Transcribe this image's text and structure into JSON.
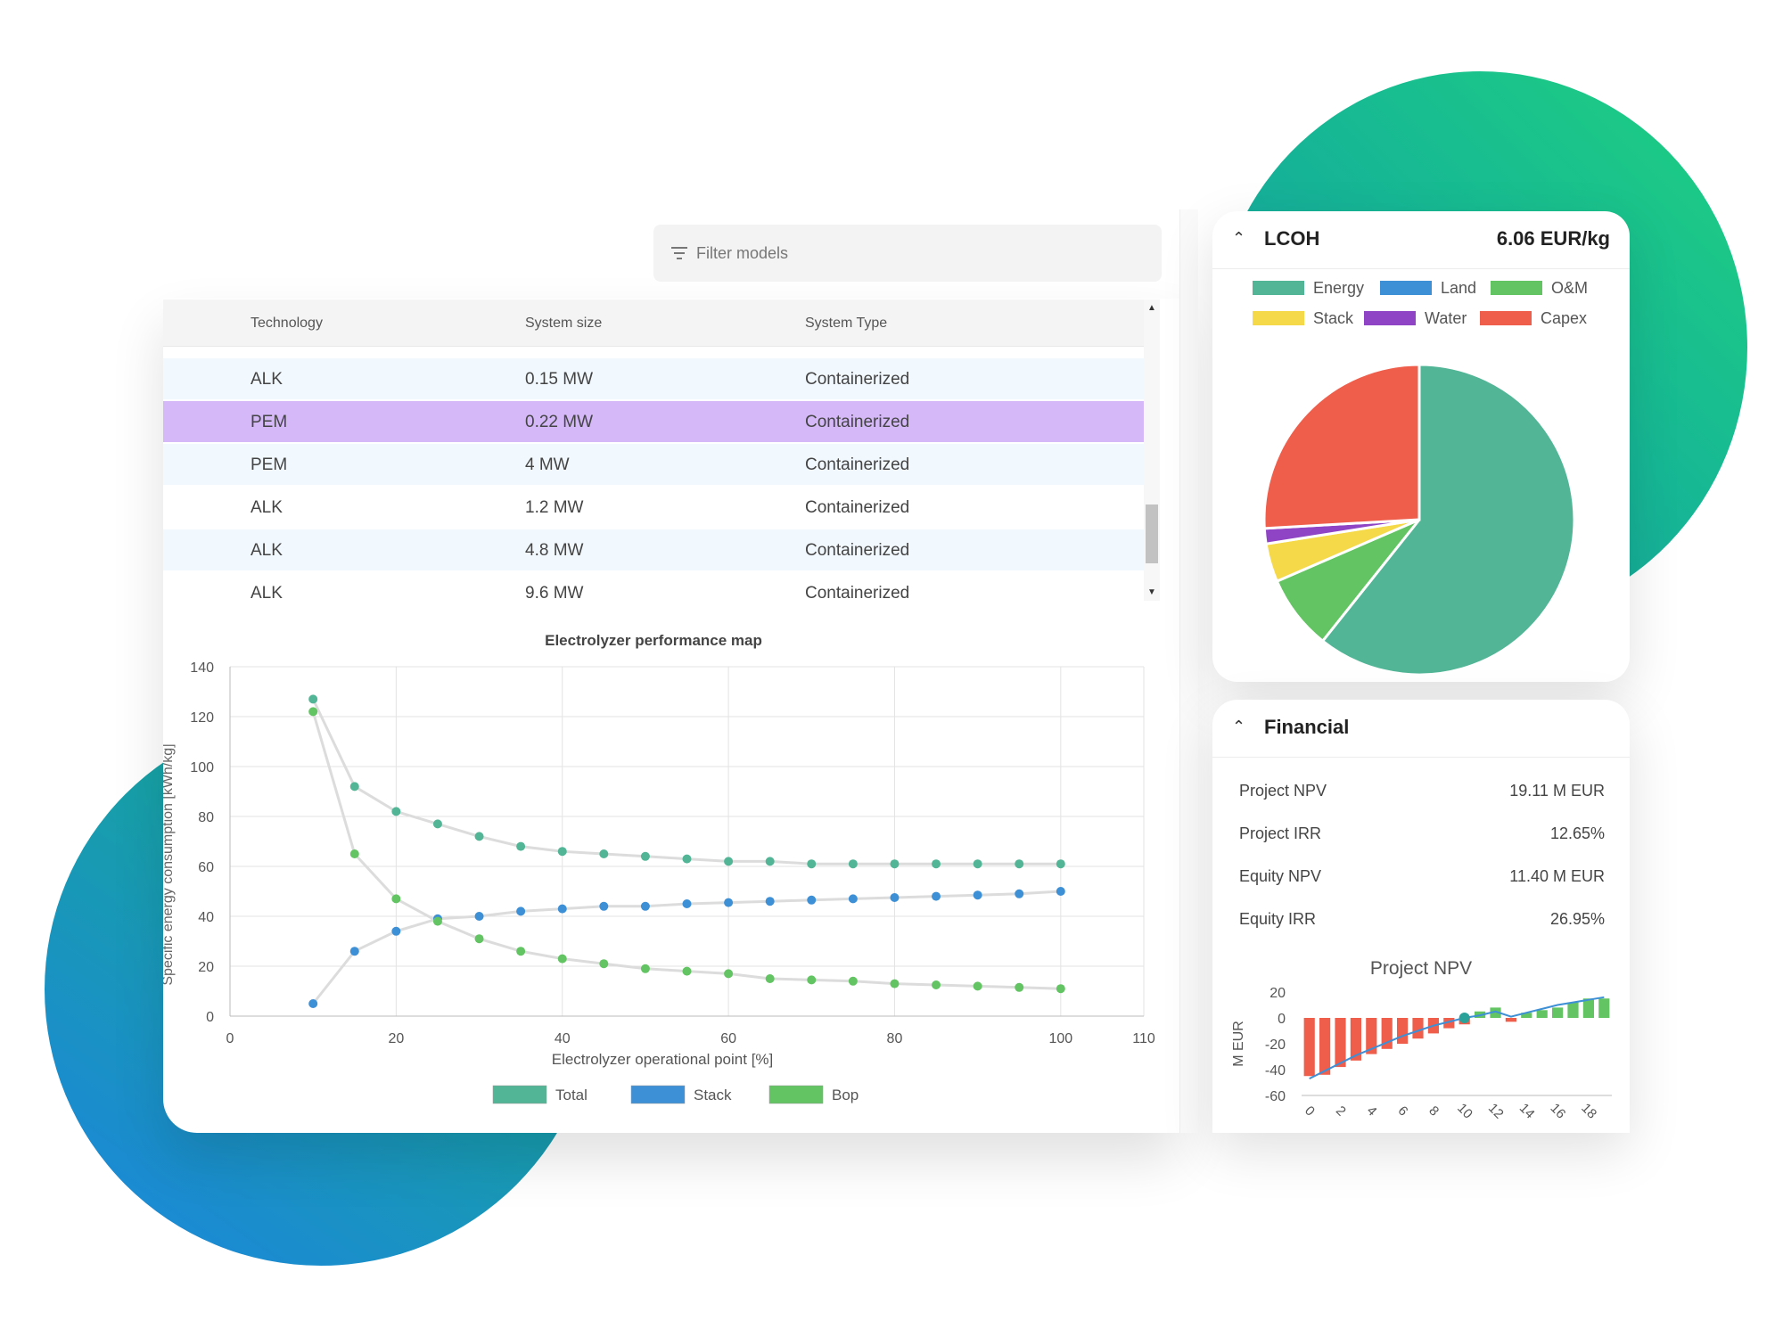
{
  "filter": {
    "placeholder": "Filter models"
  },
  "table": {
    "columns": [
      "Technology",
      "System size",
      "System Type"
    ],
    "rows": [
      {
        "tech": "ALK",
        "size": "0.15 MW",
        "type": "Containerized"
      },
      {
        "tech": "PEM",
        "size": "0.22 MW",
        "type": "Containerized",
        "selected": true
      },
      {
        "tech": "PEM",
        "size": "4 MW",
        "type": "Containerized"
      },
      {
        "tech": "ALK",
        "size": "1.2 MW",
        "type": "Containerized"
      },
      {
        "tech": "ALK",
        "size": "4.8 MW",
        "type": "Containerized"
      },
      {
        "tech": "ALK",
        "size": "9.6 MW",
        "type": "Containerized"
      }
    ]
  },
  "lcoh": {
    "title": "LCOH",
    "value": "6.06 EUR/kg"
  },
  "financial": {
    "title": "Financial",
    "rows": [
      {
        "label": "Project NPV",
        "value": "19.11 M EUR"
      },
      {
        "label": "Project IRR",
        "value": "12.65%"
      },
      {
        "label": "Equity NPV",
        "value": "11.40 M EUR"
      },
      {
        "label": "Equity IRR",
        "value": "26.95%"
      }
    ]
  },
  "colors": {
    "total": "#52b596",
    "stack": "#3d8fd6",
    "bop": "#62c462",
    "selected_row": "#d4b8f8",
    "alt_row": "#f1f8fe",
    "negative": "#ef5d4b",
    "positive": "#62c462"
  },
  "chart_data": [
    {
      "type": "scatter",
      "title": "Electrolyzer performance map",
      "xlabel": "Electrolyzer operational point [%]",
      "ylabel": "Specific energy consumption [kWh/kg]",
      "xlim": [
        0,
        110
      ],
      "ylim": [
        0,
        140
      ],
      "xticks": [
        0,
        20,
        40,
        60,
        80,
        100,
        110
      ],
      "yticks": [
        0,
        20,
        40,
        60,
        80,
        100,
        120,
        140
      ],
      "legend_position": "bottom",
      "series": [
        {
          "name": "Total",
          "color": "#52b596",
          "x": [
            10,
            15,
            20,
            25,
            30,
            35,
            40,
            45,
            50,
            55,
            60,
            65,
            70,
            75,
            80,
            85,
            90,
            95,
            100
          ],
          "y": [
            127,
            92,
            82,
            77,
            72,
            68,
            66,
            65,
            64,
            63,
            62,
            62,
            61,
            61,
            61,
            61,
            61,
            61,
            61
          ]
        },
        {
          "name": "Stack",
          "color": "#3d8fd6",
          "x": [
            10,
            15,
            20,
            25,
            30,
            35,
            40,
            45,
            50,
            55,
            60,
            65,
            70,
            75,
            80,
            85,
            90,
            95,
            100
          ],
          "y": [
            5,
            26,
            34,
            39,
            40,
            42,
            43,
            44,
            44,
            45,
            45.5,
            46,
            46.5,
            47,
            47.5,
            48,
            48.5,
            49,
            50
          ]
        },
        {
          "name": "Bop",
          "color": "#62c462",
          "x": [
            10,
            15,
            20,
            25,
            30,
            35,
            40,
            45,
            50,
            55,
            60,
            65,
            70,
            75,
            80,
            85,
            90,
            95,
            100
          ],
          "y": [
            122,
            65,
            47,
            38,
            31,
            26,
            23,
            21,
            19,
            18,
            17,
            15,
            14.5,
            14,
            13,
            12.5,
            12,
            11.5,
            11
          ]
        }
      ]
    },
    {
      "type": "pie",
      "legend_position": "top",
      "slices": [
        {
          "name": "Energy",
          "value": 60.7,
          "color": "#52b596"
        },
        {
          "name": "Land",
          "value": 0,
          "color": "#3d8fd6"
        },
        {
          "name": "O&M",
          "value": 7.8,
          "color": "#62c462"
        },
        {
          "name": "Stack",
          "value": 4.0,
          "color": "#f5d948"
        },
        {
          "name": "Water",
          "value": 1.6,
          "color": "#8e44c4"
        },
        {
          "name": "Capex",
          "value": 25.9,
          "color": "#ef5d4b"
        }
      ]
    },
    {
      "type": "bar",
      "title": "Project NPV",
      "ylabel": "M EUR",
      "ylim": [
        -60,
        20
      ],
      "yticks": [
        20,
        0,
        -20,
        -40,
        -60
      ],
      "x": [
        0,
        1,
        2,
        3,
        4,
        5,
        6,
        7,
        8,
        9,
        10,
        11,
        12,
        13,
        14,
        15,
        16,
        17,
        18,
        19
      ],
      "xtick_labels": [
        0,
        2,
        4,
        6,
        8,
        10,
        12,
        14,
        16,
        18
      ],
      "values": [
        -45,
        -44,
        -38,
        -33,
        -28,
        -24,
        -20,
        -16,
        -12,
        -8,
        -5,
        5,
        8,
        -3,
        4,
        6,
        8,
        12,
        15,
        15
      ],
      "line": [
        -47,
        -41,
        -35,
        -29,
        -24,
        -19,
        -14,
        -10,
        -6,
        -3,
        0,
        2,
        5,
        1,
        4,
        7,
        10,
        12,
        14,
        16
      ]
    }
  ]
}
